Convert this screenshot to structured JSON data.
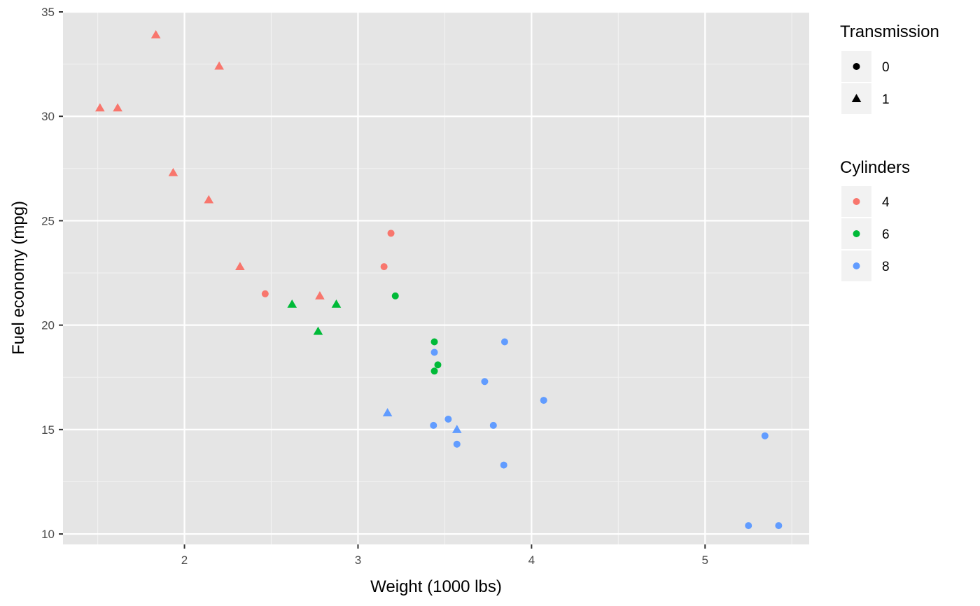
{
  "chart_data": {
    "type": "scatter",
    "xlabel": "Weight (1000 lbs)",
    "ylabel": "Fuel economy (mpg)",
    "xlim": [
      1.3,
      5.6
    ],
    "ylim": [
      9.5,
      35.0
    ],
    "x_ticks": [
      2,
      3,
      4,
      5
    ],
    "y_ticks": [
      10,
      15,
      20,
      25,
      30,
      35
    ],
    "x_tick_labels": [
      "2",
      "3",
      "4",
      "5"
    ],
    "y_tick_labels": [
      "10",
      "15",
      "20",
      "25",
      "30",
      "35"
    ],
    "grid": true,
    "background": "#e5e5e5",
    "legend_position": "right",
    "shape_legend": {
      "title": "Transmission",
      "entries": [
        {
          "label": "0",
          "shape": "circle"
        },
        {
          "label": "1",
          "shape": "triangle"
        }
      ]
    },
    "color_legend": {
      "title": "Cylinders",
      "entries": [
        {
          "label": "4",
          "color": "#F8766D"
        },
        {
          "label": "6",
          "color": "#00BA38"
        },
        {
          "label": "8",
          "color": "#619CFF"
        }
      ]
    },
    "points": [
      {
        "x": 2.62,
        "y": 21.0,
        "cyl": "6",
        "am": "1"
      },
      {
        "x": 2.875,
        "y": 21.0,
        "cyl": "6",
        "am": "1"
      },
      {
        "x": 2.32,
        "y": 22.8,
        "cyl": "4",
        "am": "1"
      },
      {
        "x": 3.215,
        "y": 21.4,
        "cyl": "6",
        "am": "0"
      },
      {
        "x": 3.44,
        "y": 18.7,
        "cyl": "8",
        "am": "0"
      },
      {
        "x": 3.46,
        "y": 18.1,
        "cyl": "6",
        "am": "0"
      },
      {
        "x": 3.57,
        "y": 14.3,
        "cyl": "8",
        "am": "0"
      },
      {
        "x": 3.19,
        "y": 24.4,
        "cyl": "4",
        "am": "0"
      },
      {
        "x": 3.15,
        "y": 22.8,
        "cyl": "4",
        "am": "0"
      },
      {
        "x": 3.44,
        "y": 19.2,
        "cyl": "6",
        "am": "0"
      },
      {
        "x": 3.44,
        "y": 17.8,
        "cyl": "6",
        "am": "0"
      },
      {
        "x": 4.07,
        "y": 16.4,
        "cyl": "8",
        "am": "0"
      },
      {
        "x": 3.73,
        "y": 17.3,
        "cyl": "8",
        "am": "0"
      },
      {
        "x": 3.78,
        "y": 15.2,
        "cyl": "8",
        "am": "0"
      },
      {
        "x": 5.25,
        "y": 10.4,
        "cyl": "8",
        "am": "0"
      },
      {
        "x": 5.424,
        "y": 10.4,
        "cyl": "8",
        "am": "0"
      },
      {
        "x": 5.345,
        "y": 14.7,
        "cyl": "8",
        "am": "0"
      },
      {
        "x": 2.2,
        "y": 32.4,
        "cyl": "4",
        "am": "1"
      },
      {
        "x": 1.615,
        "y": 30.4,
        "cyl": "4",
        "am": "1"
      },
      {
        "x": 1.835,
        "y": 33.9,
        "cyl": "4",
        "am": "1"
      },
      {
        "x": 2.465,
        "y": 21.5,
        "cyl": "4",
        "am": "0"
      },
      {
        "x": 3.52,
        "y": 15.5,
        "cyl": "8",
        "am": "0"
      },
      {
        "x": 3.435,
        "y": 15.2,
        "cyl": "8",
        "am": "0"
      },
      {
        "x": 3.84,
        "y": 13.3,
        "cyl": "8",
        "am": "0"
      },
      {
        "x": 3.845,
        "y": 19.2,
        "cyl": "8",
        "am": "0"
      },
      {
        "x": 1.935,
        "y": 27.3,
        "cyl": "4",
        "am": "1"
      },
      {
        "x": 2.14,
        "y": 26.0,
        "cyl": "4",
        "am": "1"
      },
      {
        "x": 1.513,
        "y": 30.4,
        "cyl": "4",
        "am": "1"
      },
      {
        "x": 3.17,
        "y": 15.8,
        "cyl": "8",
        "am": "1"
      },
      {
        "x": 2.77,
        "y": 19.7,
        "cyl": "6",
        "am": "1"
      },
      {
        "x": 3.57,
        "y": 15.0,
        "cyl": "8",
        "am": "1"
      },
      {
        "x": 2.78,
        "y": 21.4,
        "cyl": "4",
        "am": "1"
      }
    ]
  }
}
